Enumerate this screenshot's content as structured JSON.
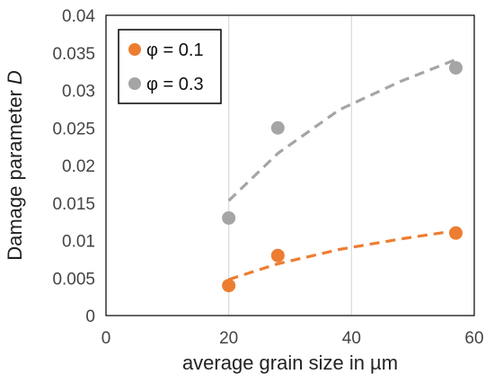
{
  "chart_data": {
    "type": "scatter",
    "xlabel": "average grain size in µm",
    "ylabel_main": "Damage parameter ",
    "ylabel_var": "D",
    "xlim": [
      0,
      60
    ],
    "ylim": [
      0,
      0.04
    ],
    "x_ticks": [
      0,
      20,
      40,
      60
    ],
    "y_ticks": [
      0,
      0.005,
      0.01,
      0.015,
      0.02,
      0.025,
      0.03,
      0.035,
      0.04
    ],
    "x_tick_labels": [
      "0",
      "20",
      "40",
      "60"
    ],
    "y_tick_labels": [
      "0",
      "0.005",
      "0.01",
      "0.015",
      "0.02",
      "0.025",
      "0.03",
      "0.035",
      "0.04"
    ],
    "grid": "vertical",
    "legend_position": "top-left",
    "series": [
      {
        "name": "φ = 0.1",
        "color": "#ED7D31",
        "x": [
          20,
          28,
          57
        ],
        "y": [
          0.004,
          0.008,
          0.011
        ],
        "trendline": {
          "type": "dashed",
          "x": [
            20,
            28,
            38,
            48,
            57
          ],
          "y": [
            0.0048,
            0.0069,
            0.0088,
            0.0102,
            0.0113
          ]
        }
      },
      {
        "name": "φ = 0.3",
        "color": "#A5A5A5",
        "x": [
          20,
          28,
          57
        ],
        "y": [
          0.013,
          0.025,
          0.033
        ],
        "trendline": {
          "type": "dashed",
          "x": [
            20,
            28,
            38,
            48,
            57
          ],
          "y": [
            0.0153,
            0.0216,
            0.0274,
            0.0312,
            0.0341
          ]
        }
      }
    ]
  }
}
